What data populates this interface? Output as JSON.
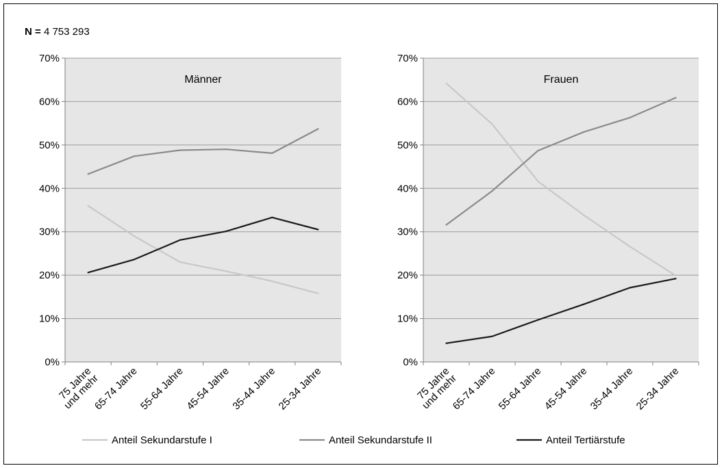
{
  "header": {
    "n_key": "N",
    "n_eq": " = ",
    "n_value": "4 753 293"
  },
  "colors": {
    "sekI": "#c8c8c8",
    "sekII": "#8a8a8a",
    "tertiaer": "#1a1a1a",
    "plot_bg": "#e6e6e6",
    "grid": "#9a9a9a",
    "axis": "#7f7f7f"
  },
  "chart_data": [
    {
      "type": "line",
      "title": "Männer",
      "categories": [
        "75 Jahre und mehr",
        "65-74 Jahre",
        "55-64 Jahre",
        "45-54 Jahre",
        "35-44 Jahre",
        "25-34 Jahre"
      ],
      "category_labels": [
        [
          "75 Jahre",
          "und mehr"
        ],
        [
          "65-74 Jahre"
        ],
        [
          "55-64 Jahre"
        ],
        [
          "45-54 Jahre"
        ],
        [
          "35-44 Jahre"
        ],
        [
          "25-34 Jahre"
        ]
      ],
      "ylim": [
        0,
        70
      ],
      "yticks": [
        0,
        10,
        20,
        30,
        40,
        50,
        60,
        70
      ],
      "ytick_labels": [
        "0%",
        "10%",
        "20%",
        "30%",
        "40%",
        "50%",
        "60%",
        "70%"
      ],
      "grid": true,
      "series": [
        {
          "name": "Anteil Sekundarstufe I",
          "color_key": "sekI",
          "values": [
            36.0,
            29.0,
            23.0,
            20.9,
            18.6,
            15.8
          ]
        },
        {
          "name": "Anteil Sekundarstufe II",
          "color_key": "sekII",
          "values": [
            43.3,
            47.4,
            48.8,
            49.0,
            48.1,
            53.7
          ]
        },
        {
          "name": "Anteil Tertiärstufe",
          "color_key": "tertiaer",
          "values": [
            20.6,
            23.6,
            28.1,
            30.1,
            33.3,
            30.5
          ]
        }
      ]
    },
    {
      "type": "line",
      "title": "Frauen",
      "categories": [
        "75 Jahre und mehr",
        "65-74 Jahre",
        "55-64 Jahre",
        "45-54 Jahre",
        "35-44 Jahre",
        "25-34 Jahre"
      ],
      "category_labels": [
        [
          "75 Jahre",
          "und mehr"
        ],
        [
          "65-74 Jahre"
        ],
        [
          "55-64 Jahre"
        ],
        [
          "45-54 Jahre"
        ],
        [
          "35-44 Jahre"
        ],
        [
          "25-34 Jahre"
        ]
      ],
      "ylim": [
        0,
        70
      ],
      "yticks": [
        0,
        10,
        20,
        30,
        40,
        50,
        60,
        70
      ],
      "ytick_labels": [
        "0%",
        "10%",
        "20%",
        "30%",
        "40%",
        "50%",
        "60%",
        "70%"
      ],
      "grid": true,
      "series": [
        {
          "name": "Anteil Sekundarstufe I",
          "color_key": "sekI",
          "values": [
            64.2,
            54.8,
            41.6,
            33.8,
            26.6,
            19.9
          ]
        },
        {
          "name": "Anteil Sekundarstufe II",
          "color_key": "sekII",
          "values": [
            31.6,
            39.4,
            48.7,
            53.0,
            56.3,
            60.9
          ]
        },
        {
          "name": "Anteil Tertiärstufe",
          "color_key": "tertiaer",
          "values": [
            4.3,
            5.9,
            9.7,
            13.3,
            17.1,
            19.2
          ]
        }
      ]
    }
  ],
  "legend": [
    {
      "label": "Anteil Sekundarstufe I",
      "color_key": "sekI"
    },
    {
      "label": "Anteil Sekundarstufe II",
      "color_key": "sekII"
    },
    {
      "label": "Anteil Tertiärstufe",
      "color_key": "tertiaer"
    }
  ]
}
